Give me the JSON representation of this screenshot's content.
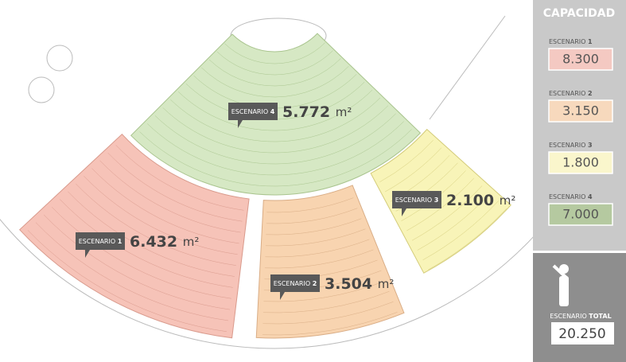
{
  "sidebar": {
    "title": "CAPACIDAD",
    "items": [
      {
        "label": "ESCENARIO",
        "number": "1",
        "value": "8.300"
      },
      {
        "label": "ESCENARIO",
        "number": "2",
        "value": "3.150"
      },
      {
        "label": "ESCENARIO",
        "number": "3",
        "value": "1.800"
      },
      {
        "label": "ESCENARIO",
        "number": "4",
        "value": "7.000"
      }
    ],
    "total": {
      "label": "ESCENARIO",
      "strong": "TOTAL",
      "value": "20.250"
    }
  },
  "plan": {
    "zones": [
      {
        "label": "ESCENARIO",
        "number": "1",
        "area": "6.432",
        "unit": "m²"
      },
      {
        "label": "ESCENARIO",
        "number": "2",
        "area": "3.504",
        "unit": "m²"
      },
      {
        "label": "ESCENARIO",
        "number": "3",
        "area": "2.100",
        "unit": "m²"
      },
      {
        "label": "ESCENARIO",
        "number": "4",
        "area": "5.772",
        "unit": "m²"
      }
    ]
  }
}
